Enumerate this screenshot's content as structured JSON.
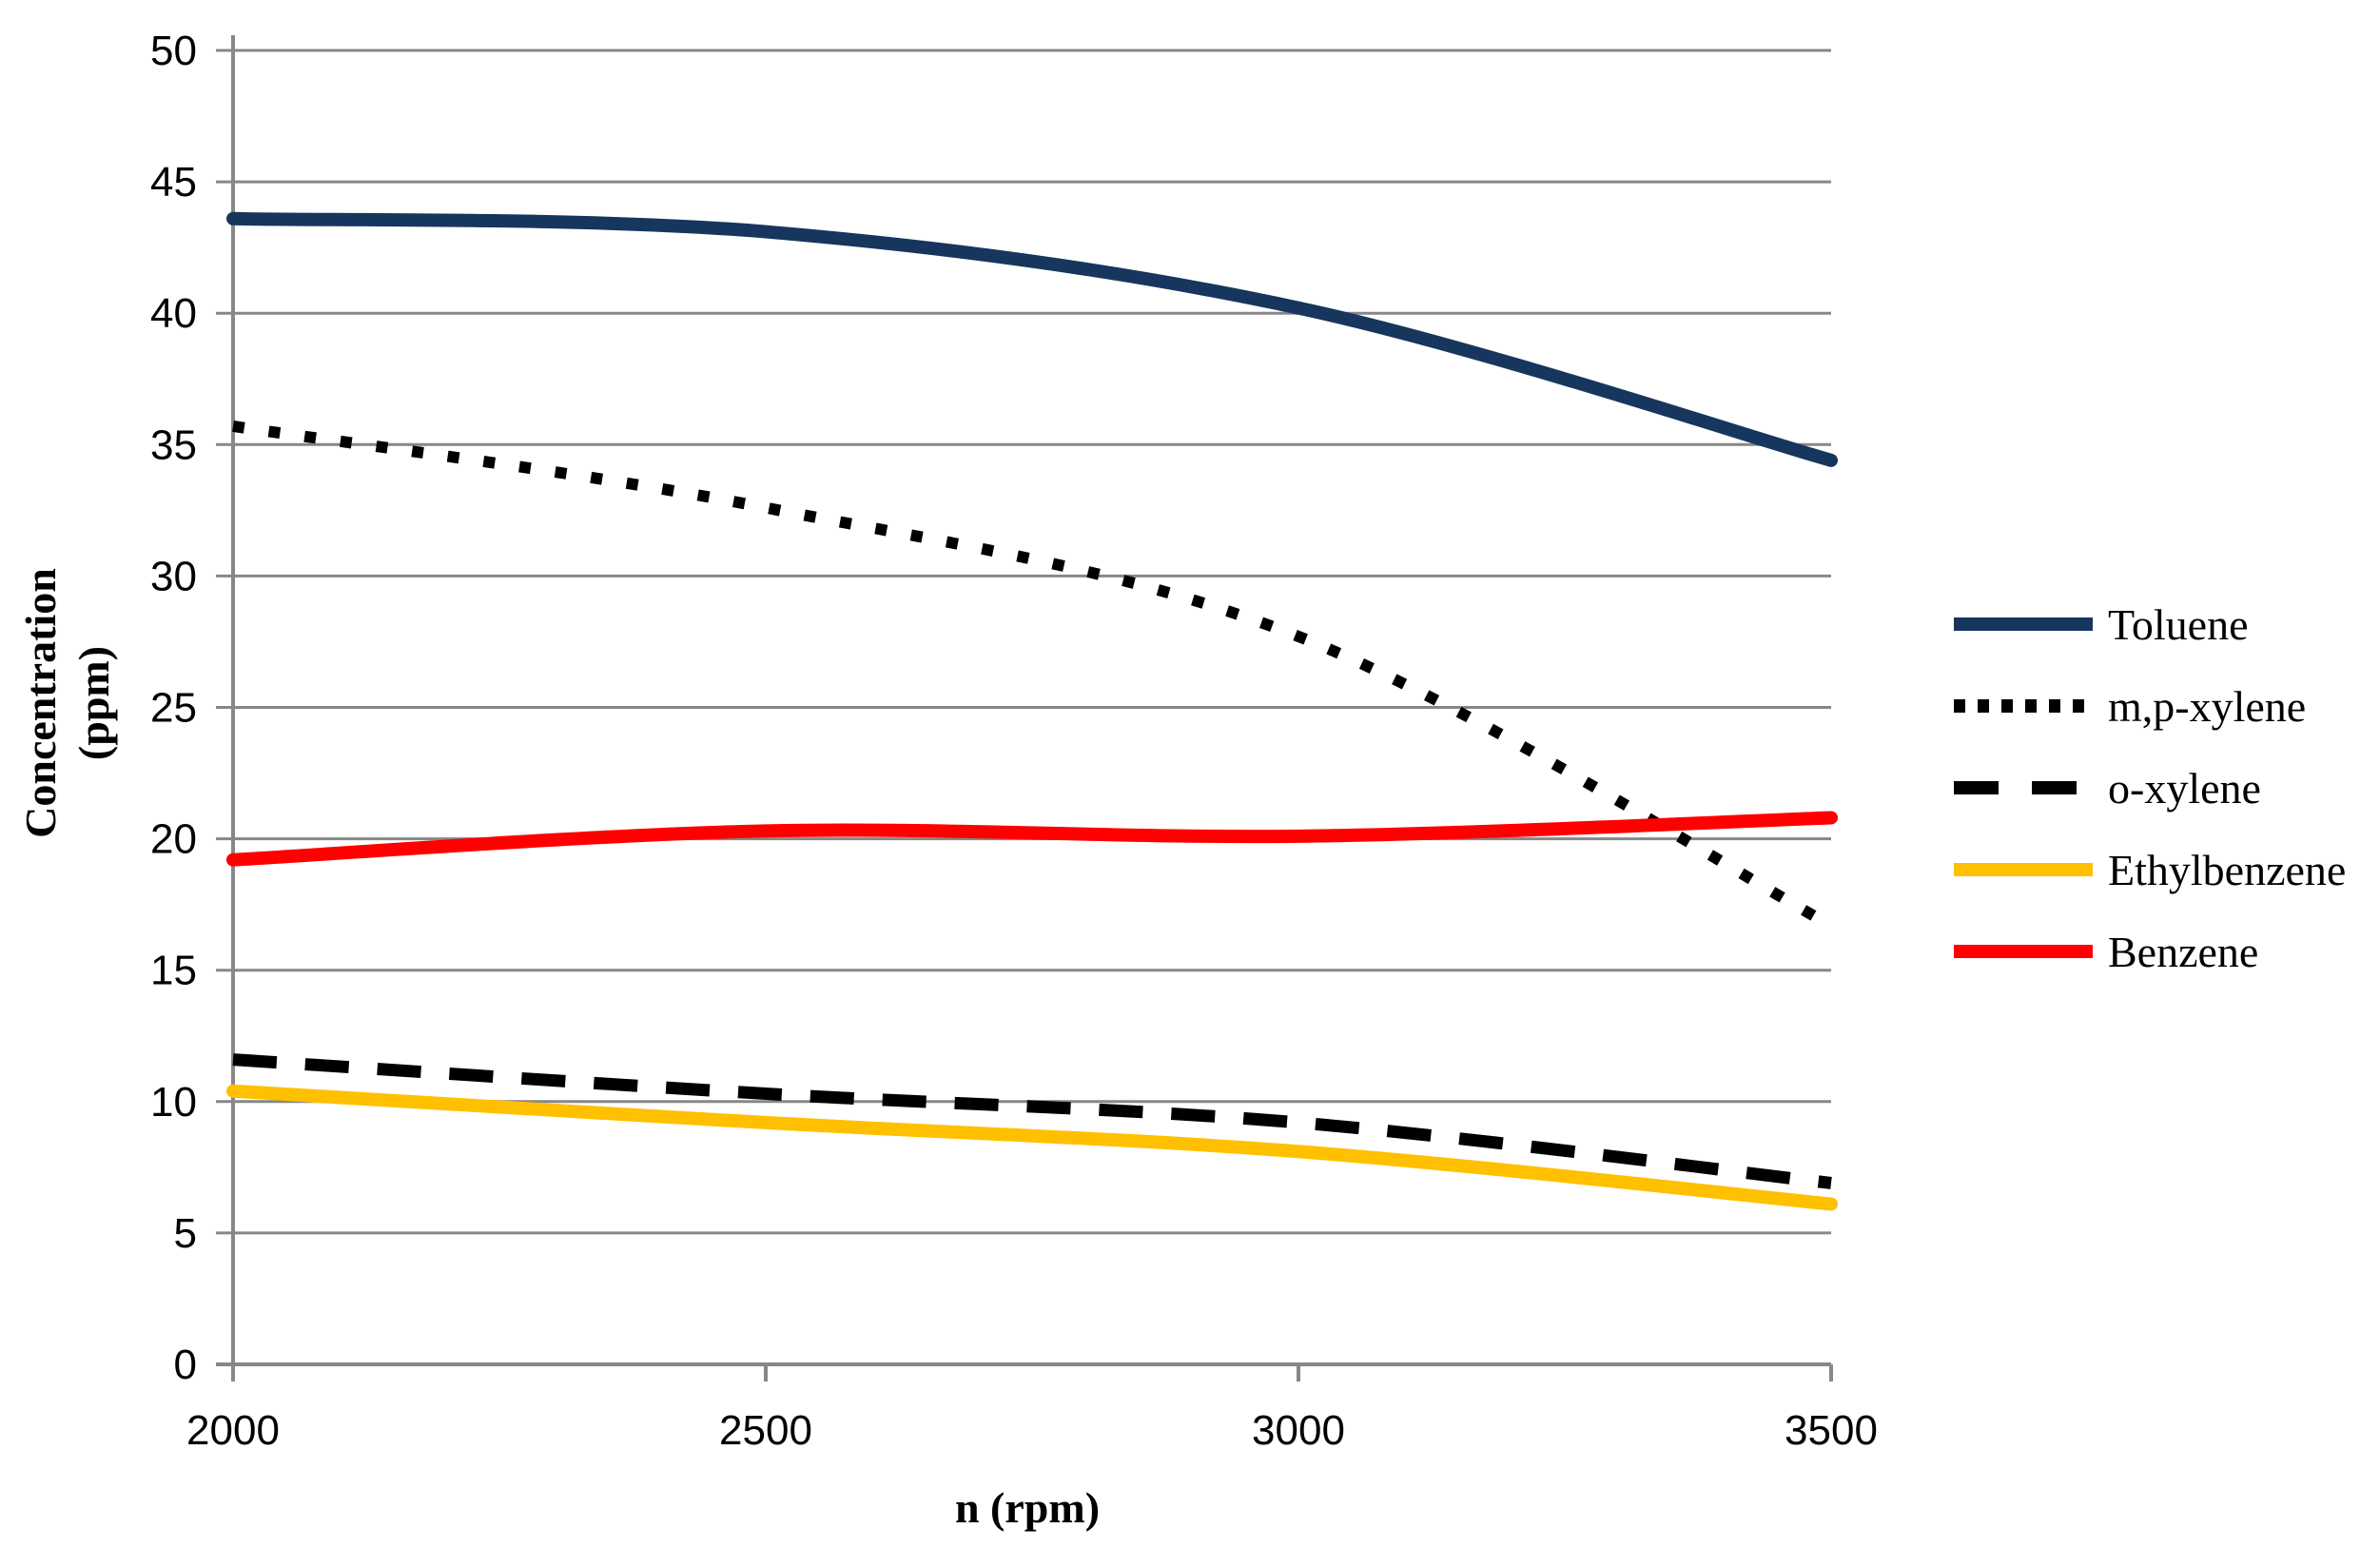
{
  "chart_data": {
    "type": "line",
    "title": "",
    "xlabel": "n (rpm)",
    "ylabel": "Concentration (ppm)",
    "ylabel_line1": "Concentration",
    "ylabel_line2": "(ppm)",
    "xlim": [
      2000,
      3500
    ],
    "ylim": [
      0,
      50
    ],
    "x": [
      2000,
      2500,
      3000,
      3500
    ],
    "xticks": [
      2000,
      2500,
      3000,
      3500
    ],
    "yticks": [
      0,
      5,
      10,
      15,
      20,
      25,
      30,
      35,
      40,
      45,
      50
    ],
    "grid": "horizontal",
    "legend_position": "right",
    "axis_color": "#878787",
    "text_color": "#000000",
    "series": [
      {
        "name": "Toluene",
        "color": "#17365D",
        "style": "solid",
        "values": [
          43.6,
          43.1,
          40.2,
          34.4
        ]
      },
      {
        "name": "m,p-xylene",
        "color": "#000000",
        "style": "dotted",
        "values": [
          35.7,
          32.6,
          27.7,
          16.7
        ]
      },
      {
        "name": "o-xylene",
        "color": "#000000",
        "style": "dashed",
        "values": [
          11.6,
          10.3,
          9.2,
          6.9
        ]
      },
      {
        "name": "Ethylbenzene",
        "color": "#FFC000",
        "style": "solid",
        "values": [
          10.4,
          9.2,
          8.1,
          6.1
        ]
      },
      {
        "name": "Benzene",
        "color": "#FF0000",
        "style": "solid",
        "values": [
          19.2,
          20.3,
          20.1,
          20.8
        ]
      }
    ]
  }
}
